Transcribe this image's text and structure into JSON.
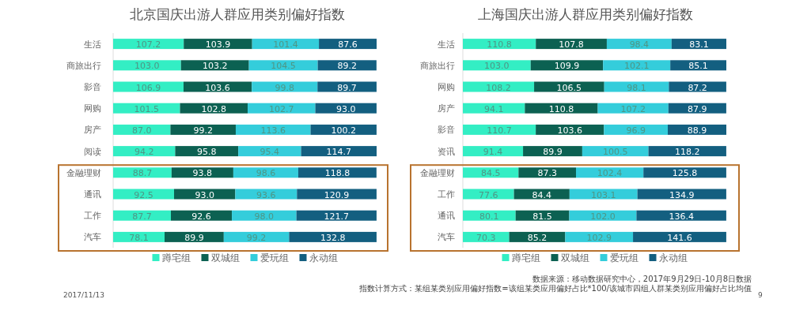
{
  "chart_data": [
    {
      "type": "bar",
      "orientation": "horizontal",
      "stacked": true,
      "legend": "bottom",
      "title": "北京国庆出游人群应用类别偏好指数",
      "categories": [
        "生活",
        "商旅出行",
        "影音",
        "网购",
        "房产",
        "阅读",
        "金融理财",
        "通讯",
        "工作",
        "汽车"
      ],
      "series": [
        {
          "name": "蹲宅组",
          "color": "#33eec4",
          "values": [
            107.2,
            103.0,
            106.9,
            101.5,
            87.0,
            94.2,
            88.7,
            92.5,
            87.7,
            78.1
          ],
          "value_labels": [
            "107.2",
            "103.0",
            "106.9",
            "101.5",
            "87.0",
            "94.2",
            "88.7",
            "92.5",
            "87.7",
            "78.1"
          ]
        },
        {
          "name": "双城组",
          "color": "#0c6152",
          "values": [
            103.9,
            103.2,
            103.6,
            102.8,
            99.2,
            95.8,
            93.8,
            93.0,
            92.6,
            89.9
          ],
          "value_labels": [
            "103.9",
            "103.2",
            "103.6",
            "102.8",
            "99.2",
            "95.8",
            "93.8",
            "93.0",
            "92.6",
            "89.9"
          ]
        },
        {
          "name": "爱玩组",
          "color": "#34cddb",
          "values": [
            101.4,
            104.5,
            99.8,
            102.7,
            113.6,
            95.4,
            98.6,
            93.6,
            98.0,
            99.2
          ],
          "value_labels": [
            "101.4",
            "104.5",
            "99.8",
            "102.7",
            "113.6",
            "95.4",
            "98.6",
            "93.6",
            "98.0",
            "99.2"
          ]
        },
        {
          "name": "永动组",
          "color": "#135f80",
          "values": [
            87.6,
            89.2,
            89.7,
            93.0,
            100.2,
            114.7,
            118.8,
            120.9,
            121.7,
            132.8
          ],
          "value_labels": [
            "87.6",
            "89.2",
            "89.7",
            "93.0",
            "100.2",
            "114.7",
            "118.8",
            "120.9",
            "121.7",
            "132.8"
          ]
        }
      ],
      "annotations": [
        "2017/11/13"
      ]
    },
    {
      "type": "bar",
      "orientation": "horizontal",
      "stacked": true,
      "legend": "bottom",
      "title": "上海国庆出游人群应用类别偏好指数",
      "categories": [
        "生活",
        "商旅出行",
        "网购",
        "房产",
        "影音",
        "资讯",
        "金融理财",
        "工作",
        "通讯",
        "汽车"
      ],
      "series": [
        {
          "name": "蹲宅组",
          "color": "#33eec4",
          "values": [
            110.8,
            103.0,
            108.2,
            94.1,
            110.7,
            91.4,
            84.5,
            77.6,
            80.1,
            70.3
          ],
          "value_labels": [
            "110.8",
            "103.0",
            "108.2",
            "94.1",
            "110.7",
            "91.4",
            "84.5",
            "77.6",
            "80.1",
            "70.3"
          ]
        },
        {
          "name": "双城组",
          "color": "#0c6152",
          "values": [
            107.8,
            109.9,
            106.5,
            110.8,
            103.6,
            89.9,
            87.3,
            84.4,
            81.5,
            85.2
          ],
          "value_labels": [
            "107.8",
            "109.9",
            "106.5",
            "110.8",
            "103.6",
            "89.9",
            "87.3",
            "84.4",
            "81.5",
            "85.2"
          ]
        },
        {
          "name": "爱玩组",
          "color": "#34cddb",
          "values": [
            98.4,
            102.1,
            98.1,
            107.2,
            96.9,
            100.5,
            102.4,
            103.1,
            102.0,
            102.9
          ],
          "value_labels": [
            "98.4",
            "102.1",
            "98.1",
            "107.2",
            "96.9",
            "100.5",
            "102.4",
            "103.1",
            "102.0",
            "102.9"
          ]
        },
        {
          "name": "永动组",
          "color": "#135f80",
          "values": [
            83.1,
            85.1,
            87.2,
            87.9,
            88.9,
            118.2,
            125.8,
            134.9,
            136.4,
            141.6
          ],
          "value_labels": [
            "83.1",
            "85.1",
            "87.2",
            "87.9",
            "88.9",
            "118.2",
            "125.8",
            "134.9",
            "136.4",
            "141.6"
          ]
        }
      ],
      "annotations": [
        "数据来源：移动数据研究中心，2017年9月29日-10月8日数据",
        "指数计算方式：某组某类别应用偏好指数=该组某类应用偏好占比*100/该城市四组人群某类别应用偏好占比均值",
        "9"
      ]
    }
  ]
}
